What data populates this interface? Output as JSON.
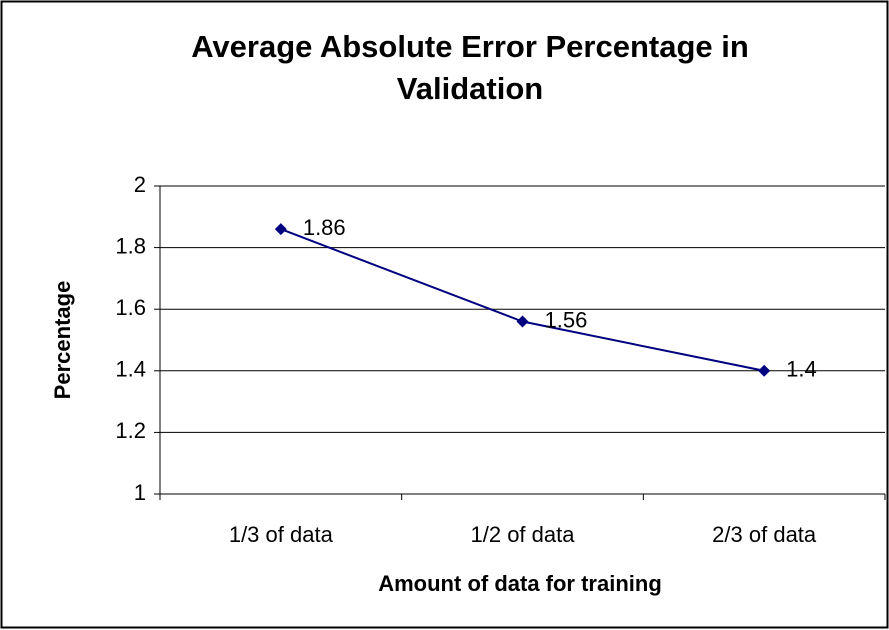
{
  "chart_data": {
    "type": "line",
    "title": "Average Absolute Error Percentage in Validation",
    "x_label": "Amount of data for training",
    "y_label": "Percentage",
    "categories": [
      "1/3 of data",
      "1/2 of data",
      "2/3 of data"
    ],
    "series": [
      {
        "color": "#000080",
        "values": [
          1.86,
          1.56,
          1.4
        ]
      }
    ],
    "ylim": [
      1,
      2
    ],
    "yticks": [
      1,
      1.2,
      1.4,
      1.6,
      1.8,
      2
    ],
    "grid": true
  }
}
